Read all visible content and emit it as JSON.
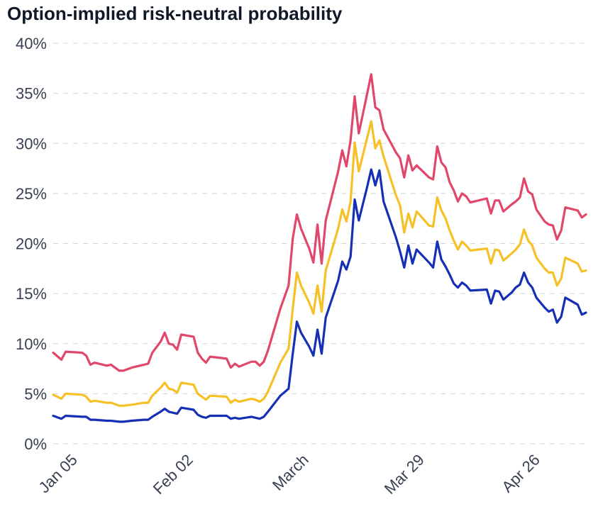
{
  "chart_data": {
    "type": "line",
    "title": "Option-implied risk-neutral probability",
    "xlabel": "",
    "ylabel": "",
    "ylim": [
      0,
      40
    ],
    "grid": true,
    "y_ticks": [
      "0%",
      "5%",
      "10%",
      "15%",
      "20%",
      "25%",
      "30%",
      "35%",
      "40%"
    ],
    "x_ticks": [
      {
        "label": "Jan 05",
        "day": 5
      },
      {
        "label": "Feb 02",
        "day": 33
      },
      {
        "label": "March",
        "day": 61
      },
      {
        "label": "Mar 29",
        "day": 89
      },
      {
        "label": "Apr 26",
        "day": 117
      }
    ],
    "series": [
      {
        "color": "#e0476a",
        "points": [
          [
            1,
            9.1
          ],
          [
            3,
            8.4
          ],
          [
            4,
            9.2
          ],
          [
            8,
            9.1
          ],
          [
            9,
            8.8
          ],
          [
            10,
            7.9
          ],
          [
            11,
            8.1
          ],
          [
            14,
            7.8
          ],
          [
            15,
            7.9
          ],
          [
            17,
            7.3
          ],
          [
            18,
            7.3
          ],
          [
            20,
            7.6
          ],
          [
            23,
            7.9
          ],
          [
            24,
            8.0
          ],
          [
            25,
            9.1
          ],
          [
            27,
            10.2
          ],
          [
            28,
            11.1
          ],
          [
            29,
            10.0
          ],
          [
            30,
            9.9
          ],
          [
            31,
            9.4
          ],
          [
            32,
            10.9
          ],
          [
            35,
            10.7
          ],
          [
            36,
            9.1
          ],
          [
            37,
            8.5
          ],
          [
            38,
            8.1
          ],
          [
            39,
            8.7
          ],
          [
            43,
            8.5
          ],
          [
            44,
            7.6
          ],
          [
            45,
            8.0
          ],
          [
            46,
            7.7
          ],
          [
            49,
            8.2
          ],
          [
            50,
            8.2
          ],
          [
            51,
            7.8
          ],
          [
            52,
            8.2
          ],
          [
            53,
            9.3
          ],
          [
            56,
            13.5
          ],
          [
            58,
            15.8
          ],
          [
            59,
            20.5
          ],
          [
            60,
            22.9
          ],
          [
            61,
            21.5
          ],
          [
            63,
            19.5
          ],
          [
            64,
            18.1
          ],
          [
            65,
            21.9
          ],
          [
            66,
            18.0
          ],
          [
            67,
            22.3
          ],
          [
            70,
            27.2
          ],
          [
            71,
            29.3
          ],
          [
            72,
            27.7
          ],
          [
            73,
            30.3
          ],
          [
            74,
            34.7
          ],
          [
            75,
            31.0
          ],
          [
            77,
            34.9
          ],
          [
            78,
            36.9
          ],
          [
            79,
            33.6
          ],
          [
            80,
            33.3
          ],
          [
            81,
            31.4
          ],
          [
            84,
            29.1
          ],
          [
            85,
            28.5
          ],
          [
            86,
            26.6
          ],
          [
            87,
            28.8
          ],
          [
            88,
            27.3
          ],
          [
            89,
            27.8
          ],
          [
            92,
            26.6
          ],
          [
            93,
            26.4
          ],
          [
            94,
            29.7
          ],
          [
            95,
            28.1
          ],
          [
            96,
            27.6
          ],
          [
            97,
            26.1
          ],
          [
            98,
            25.3
          ],
          [
            99,
            24.2
          ],
          [
            100,
            25.0
          ],
          [
            101,
            24.7
          ],
          [
            102,
            24.1
          ],
          [
            106,
            24.5
          ],
          [
            107,
            23.0
          ],
          [
            108,
            24.3
          ],
          [
            109,
            24.3
          ],
          [
            110,
            23.2
          ],
          [
            112,
            23.9
          ],
          [
            113,
            24.2
          ],
          [
            114,
            24.6
          ],
          [
            115,
            26.5
          ],
          [
            116,
            25.2
          ],
          [
            117,
            24.9
          ],
          [
            118,
            23.4
          ],
          [
            120,
            22.2
          ],
          [
            121,
            21.9
          ],
          [
            122,
            21.8
          ],
          [
            123,
            20.4
          ],
          [
            124,
            21.3
          ],
          [
            125,
            23.6
          ],
          [
            128,
            23.3
          ],
          [
            129,
            22.6
          ],
          [
            130,
            22.9
          ]
        ]
      },
      {
        "color": "#f6c027",
        "points": [
          [
            1,
            4.9
          ],
          [
            3,
            4.5
          ],
          [
            4,
            5.0
          ],
          [
            8,
            4.9
          ],
          [
            9,
            4.7
          ],
          [
            10,
            4.2
          ],
          [
            11,
            4.3
          ],
          [
            14,
            4.1
          ],
          [
            15,
            4.1
          ],
          [
            17,
            3.8
          ],
          [
            18,
            3.8
          ],
          [
            20,
            3.9
          ],
          [
            23,
            4.1
          ],
          [
            24,
            4.1
          ],
          [
            25,
            4.8
          ],
          [
            27,
            5.6
          ],
          [
            28,
            6.1
          ],
          [
            29,
            5.5
          ],
          [
            30,
            5.4
          ],
          [
            31,
            5.1
          ],
          [
            32,
            6.1
          ],
          [
            35,
            5.9
          ],
          [
            36,
            5.0
          ],
          [
            37,
            4.7
          ],
          [
            38,
            4.4
          ],
          [
            39,
            4.8
          ],
          [
            43,
            4.7
          ],
          [
            44,
            4.1
          ],
          [
            45,
            4.4
          ],
          [
            46,
            4.2
          ],
          [
            49,
            4.5
          ],
          [
            50,
            4.4
          ],
          [
            51,
            4.2
          ],
          [
            52,
            4.5
          ],
          [
            53,
            5.2
          ],
          [
            56,
            8.1
          ],
          [
            58,
            9.5
          ],
          [
            59,
            13.5
          ],
          [
            60,
            17.1
          ],
          [
            61,
            15.8
          ],
          [
            63,
            14.1
          ],
          [
            64,
            13.0
          ],
          [
            65,
            15.8
          ],
          [
            66,
            13.2
          ],
          [
            67,
            17.3
          ],
          [
            70,
            21.5
          ],
          [
            71,
            23.4
          ],
          [
            72,
            22.2
          ],
          [
            73,
            24.2
          ],
          [
            74,
            30.1
          ],
          [
            75,
            27.2
          ],
          [
            77,
            30.5
          ],
          [
            78,
            32.2
          ],
          [
            79,
            29.5
          ],
          [
            80,
            30.3
          ],
          [
            81,
            28.7
          ],
          [
            84,
            24.8
          ],
          [
            85,
            23.8
          ],
          [
            86,
            21.1
          ],
          [
            87,
            23.0
          ],
          [
            88,
            21.6
          ],
          [
            89,
            23.2
          ],
          [
            92,
            21.8
          ],
          [
            93,
            21.7
          ],
          [
            94,
            24.6
          ],
          [
            95,
            23.3
          ],
          [
            96,
            22.5
          ],
          [
            97,
            21.3
          ],
          [
            98,
            20.3
          ],
          [
            99,
            19.4
          ],
          [
            100,
            20.2
          ],
          [
            101,
            19.8
          ],
          [
            102,
            19.3
          ],
          [
            106,
            19.5
          ],
          [
            107,
            18.0
          ],
          [
            108,
            19.4
          ],
          [
            109,
            19.3
          ],
          [
            110,
            18.3
          ],
          [
            112,
            19.0
          ],
          [
            113,
            19.4
          ],
          [
            114,
            19.9
          ],
          [
            115,
            21.4
          ],
          [
            116,
            20.3
          ],
          [
            117,
            19.8
          ],
          [
            118,
            18.6
          ],
          [
            120,
            17.5
          ],
          [
            121,
            17.1
          ],
          [
            122,
            17.1
          ],
          [
            123,
            15.8
          ],
          [
            124,
            16.5
          ],
          [
            125,
            18.6
          ],
          [
            128,
            18.0
          ],
          [
            129,
            17.2
          ],
          [
            130,
            17.3
          ]
        ]
      },
      {
        "color": "#1630b5",
        "points": [
          [
            1,
            2.8
          ],
          [
            3,
            2.5
          ],
          [
            4,
            2.8
          ],
          [
            8,
            2.7
          ],
          [
            9,
            2.7
          ],
          [
            10,
            2.4
          ],
          [
            11,
            2.4
          ],
          [
            14,
            2.3
          ],
          [
            15,
            2.3
          ],
          [
            17,
            2.2
          ],
          [
            18,
            2.2
          ],
          [
            20,
            2.3
          ],
          [
            23,
            2.4
          ],
          [
            24,
            2.4
          ],
          [
            25,
            2.7
          ],
          [
            27,
            3.2
          ],
          [
            28,
            3.5
          ],
          [
            29,
            3.2
          ],
          [
            30,
            3.1
          ],
          [
            31,
            3.0
          ],
          [
            32,
            3.6
          ],
          [
            35,
            3.4
          ],
          [
            36,
            2.9
          ],
          [
            37,
            2.7
          ],
          [
            38,
            2.6
          ],
          [
            39,
            2.8
          ],
          [
            43,
            2.8
          ],
          [
            44,
            2.5
          ],
          [
            45,
            2.6
          ],
          [
            46,
            2.5
          ],
          [
            49,
            2.7
          ],
          [
            50,
            2.6
          ],
          [
            51,
            2.5
          ],
          [
            52,
            2.7
          ],
          [
            53,
            3.2
          ],
          [
            56,
            4.8
          ],
          [
            58,
            5.5
          ],
          [
            59,
            9.0
          ],
          [
            60,
            12.2
          ],
          [
            61,
            11.1
          ],
          [
            63,
            9.7
          ],
          [
            64,
            8.8
          ],
          [
            65,
            11.4
          ],
          [
            66,
            9.0
          ],
          [
            67,
            12.6
          ],
          [
            70,
            16.3
          ],
          [
            71,
            18.2
          ],
          [
            72,
            17.4
          ],
          [
            73,
            18.7
          ],
          [
            74,
            24.4
          ],
          [
            75,
            22.3
          ],
          [
            77,
            25.6
          ],
          [
            78,
            27.4
          ],
          [
            79,
            25.8
          ],
          [
            80,
            27.3
          ],
          [
            81,
            24.2
          ],
          [
            84,
            20.6
          ],
          [
            85,
            19.2
          ],
          [
            86,
            17.6
          ],
          [
            87,
            19.8
          ],
          [
            88,
            18.0
          ],
          [
            89,
            19.4
          ],
          [
            92,
            18.1
          ],
          [
            93,
            17.6
          ],
          [
            94,
            20.2
          ],
          [
            95,
            18.4
          ],
          [
            96,
            17.7
          ],
          [
            97,
            16.9
          ],
          [
            98,
            16.0
          ],
          [
            99,
            15.6
          ],
          [
            100,
            16.1
          ],
          [
            101,
            15.8
          ],
          [
            102,
            15.3
          ],
          [
            106,
            15.4
          ],
          [
            107,
            14.0
          ],
          [
            108,
            15.3
          ],
          [
            109,
            15.2
          ],
          [
            110,
            14.4
          ],
          [
            112,
            15.1
          ],
          [
            113,
            15.6
          ],
          [
            114,
            15.9
          ],
          [
            115,
            17.1
          ],
          [
            116,
            16.1
          ],
          [
            117,
            15.6
          ],
          [
            118,
            14.6
          ],
          [
            120,
            13.6
          ],
          [
            121,
            13.2
          ],
          [
            122,
            13.4
          ],
          [
            123,
            12.1
          ],
          [
            124,
            12.7
          ],
          [
            125,
            14.6
          ],
          [
            128,
            13.9
          ],
          [
            129,
            12.9
          ],
          [
            130,
            13.1
          ]
        ]
      }
    ]
  }
}
